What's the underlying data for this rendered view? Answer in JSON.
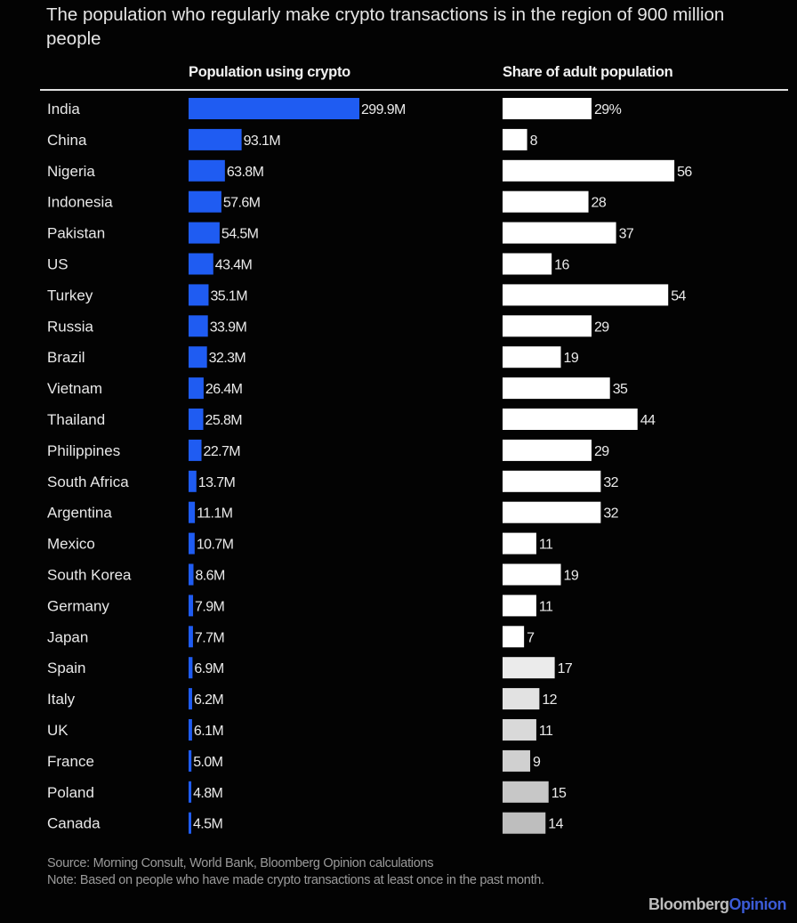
{
  "chart_data": {
    "type": "bar",
    "title": "The population who regularly make crypto transactions is in the region of 900 million people",
    "categories": [
      "India",
      "China",
      "Nigeria",
      "Indonesia",
      "Pakistan",
      "US",
      "Turkey",
      "Russia",
      "Brazil",
      "Vietnam",
      "Thailand",
      "Philippines",
      "South Africa",
      "Argentina",
      "Mexico",
      "South Korea",
      "Germany",
      "Japan",
      "Spain",
      "Italy",
      "UK",
      "France",
      "Poland",
      "Canada"
    ],
    "series": [
      {
        "name": "Population using crypto",
        "unit": "M",
        "color": "#1f5cf2",
        "values": [
          299.9,
          93.1,
          63.8,
          57.6,
          54.5,
          43.4,
          35.1,
          33.9,
          32.3,
          26.4,
          25.8,
          22.7,
          13.7,
          11.1,
          10.7,
          8.6,
          7.9,
          7.7,
          6.9,
          6.2,
          6.1,
          5.0,
          4.8,
          4.5
        ],
        "labels": [
          "299.9M",
          "93.1M",
          "63.8M",
          "57.6M",
          "54.5M",
          "43.4M",
          "35.1M",
          "33.9M",
          "32.3M",
          "26.4M",
          "25.8M",
          "22.7M",
          "13.7M",
          "11.1M",
          "10.7M",
          "8.6M",
          "7.9M",
          "7.7M",
          "6.9M",
          "6.2M",
          "6.1M",
          "5.0M",
          "4.8M",
          "4.5M"
        ]
      },
      {
        "name": "Share of adult population",
        "unit": "%",
        "color": "#ffffff",
        "values": [
          29,
          8,
          56,
          28,
          37,
          16,
          54,
          29,
          19,
          35,
          44,
          29,
          32,
          32,
          11,
          19,
          11,
          7,
          17,
          12,
          11,
          9,
          15,
          14
        ],
        "labels": [
          "29%",
          "8",
          "56",
          "28",
          "37",
          "16",
          "54",
          "29",
          "19",
          "35",
          "44",
          "29",
          "32",
          "32",
          "11",
          "19",
          "11",
          "7",
          "17",
          "12",
          "11",
          "9",
          "15",
          "14"
        ]
      }
    ],
    "legend": "column headers"
  },
  "footer": {
    "source": "Source: Morning Consult, World Bank, Bloomberg Opinion calculations",
    "note": "Note: Based on people who have made crypto transactions at least once in the past month."
  },
  "logo": {
    "brand": "Bloomberg",
    "sub": "Opinion"
  }
}
